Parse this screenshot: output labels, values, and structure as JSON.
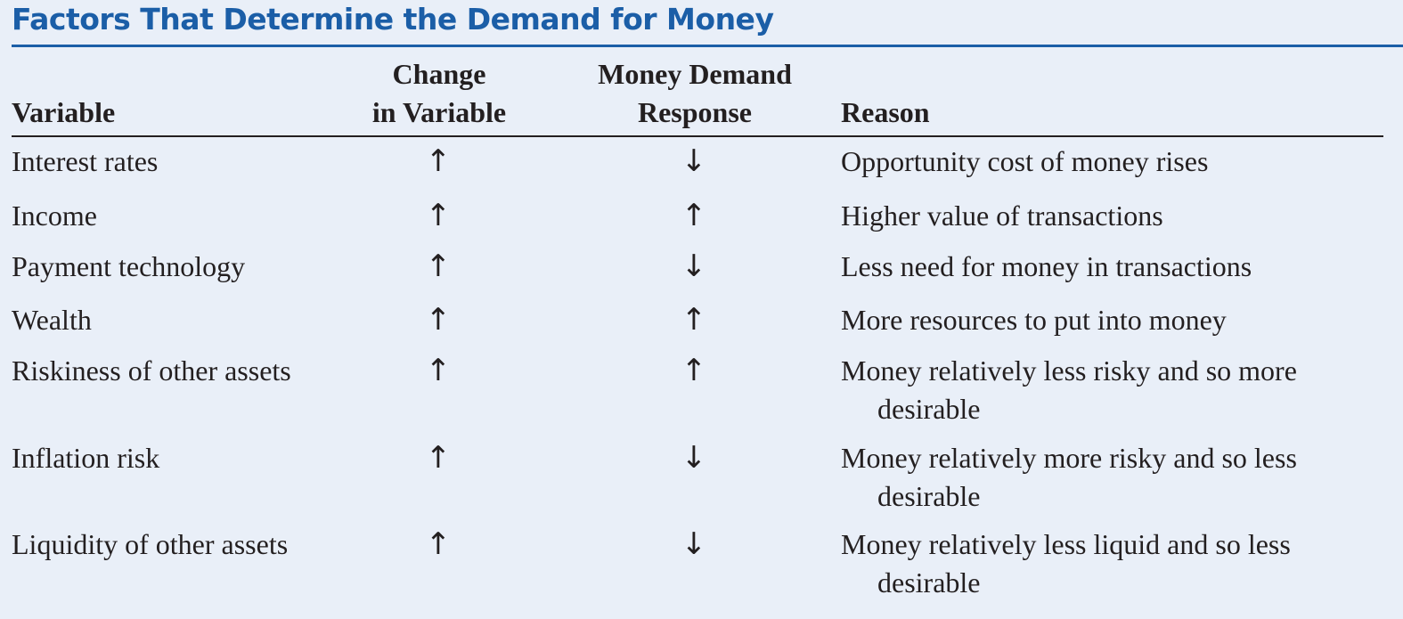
{
  "title": "Factors That Determine the Demand for Money",
  "headers": {
    "variable": "Variable",
    "change_line1": "Change",
    "change_line2": "in Variable",
    "response_line1": "Money Demand",
    "response_line2": "Response",
    "reason": "Reason"
  },
  "rows": [
    {
      "variable": "Interest rates",
      "change": "↑",
      "response": "↓",
      "reason": "Opportunity cost of money rises",
      "reason_cont": ""
    },
    {
      "variable": "Income",
      "change": "↑",
      "response": "↑",
      "reason": "Higher value of transactions",
      "reason_cont": ""
    },
    {
      "variable": "Payment technology",
      "change": "↑",
      "response": "↓",
      "reason": "Less need for money in transactions",
      "reason_cont": ""
    },
    {
      "variable": "Wealth",
      "change": "↑",
      "response": "↑",
      "reason": "More resources to put into money",
      "reason_cont": ""
    },
    {
      "variable": "Riskiness of other assets",
      "change": "↑",
      "response": "↑",
      "reason": "Money relatively less risky and so more",
      "reason_cont": "desirable"
    },
    {
      "variable": "Inflation risk",
      "change": "↑",
      "response": "↓",
      "reason": "Money relatively more risky and so less",
      "reason_cont": "desirable"
    },
    {
      "variable": "Liquidity of other assets",
      "change": "↑",
      "response": "↓",
      "reason": "Money relatively less liquid and so less",
      "reason_cont": "desirable"
    }
  ]
}
